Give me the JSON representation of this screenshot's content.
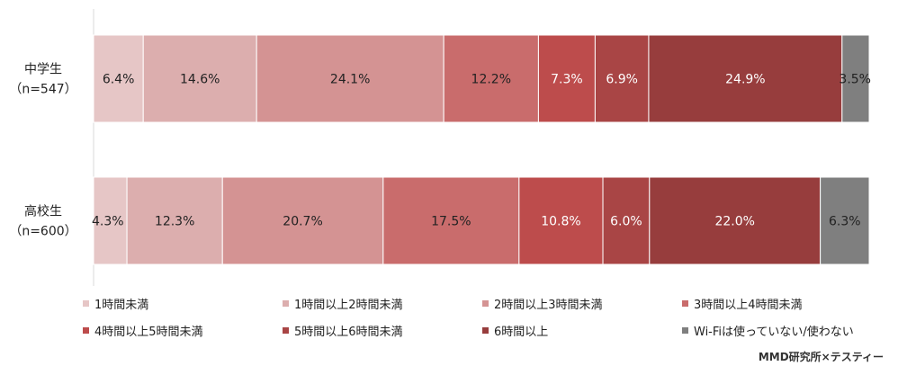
{
  "chart_data": {
    "type": "bar",
    "orientation": "horizontal",
    "stacked": true,
    "normalized": true,
    "categories": [
      "中学生",
      "高校生"
    ],
    "category_sublabels": [
      "（n=547）",
      "（n=600）"
    ],
    "series": [
      {
        "name": "1時間未満",
        "color": "#e6c6c6",
        "values": [
          6.4,
          4.3
        ],
        "labels": [
          "6.4%",
          "4.3%"
        ]
      },
      {
        "name": "1時間以上2時間未満",
        "color": "#dcaeae",
        "values": [
          14.6,
          12.3
        ],
        "labels": [
          "14.6%",
          "12.3%"
        ]
      },
      {
        "name": "2時間以上3時間未満",
        "color": "#d49393",
        "values": [
          24.1,
          20.7
        ],
        "labels": [
          "24.1%",
          "20.7%"
        ]
      },
      {
        "name": "3時間以上4時間未満",
        "color": "#c96c6c",
        "values": [
          12.2,
          17.5
        ],
        "labels": [
          "12.2%",
          "17.5%"
        ]
      },
      {
        "name": "4時間以上5時間未満",
        "color": "#bd4c4c",
        "values": [
          7.3,
          10.8
        ],
        "labels": [
          "7.3%",
          "10.8%"
        ]
      },
      {
        "name": "5時間以上6時間未満",
        "color": "#a94545",
        "values": [
          6.9,
          6.0
        ],
        "labels": [
          "6.9%",
          "6.0%"
        ]
      },
      {
        "name": "6時間以上",
        "color": "#973d3d",
        "values": [
          24.9,
          22.0
        ],
        "labels": [
          "24.9%",
          "22.0%"
        ]
      },
      {
        "name": "Wi-Fiは使っていない/使わない",
        "color": "#7f7f7f",
        "values": [
          3.5,
          6.3
        ],
        "labels": [
          "3.5%",
          "6.3%"
        ]
      }
    ],
    "label_colors": [
      "#222222",
      "#222222",
      "#222222",
      "#222222",
      "#ffffff",
      "#ffffff",
      "#ffffff",
      "#222222"
    ],
    "legend_position": "bottom",
    "grid": false
  },
  "source": "MMD研究所×テスティー"
}
